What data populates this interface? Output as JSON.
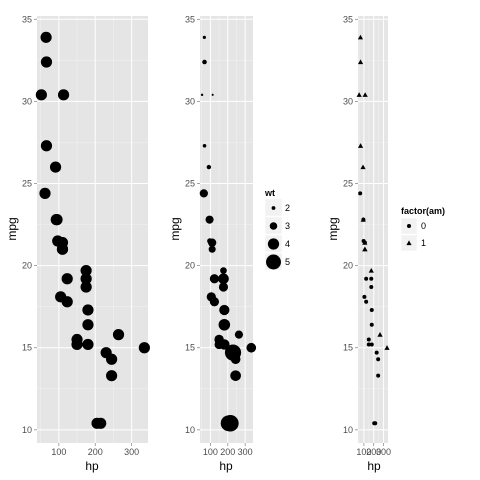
{
  "chart_data": [
    {
      "type": "scatter",
      "xlabel": "hp",
      "ylabel": "mpg",
      "xticks": [
        "100",
        "200",
        "300"
      ],
      "yticks": [
        "10",
        "15",
        "20",
        "25",
        "30",
        "35"
      ],
      "xlim": [
        40,
        345
      ],
      "ylim": [
        9.2,
        35.2
      ],
      "size_by": "constant",
      "shape_by": "none",
      "grid": true,
      "background": "#e5e5e5",
      "points": [
        {
          "hp": 110,
          "mpg": 21.0
        },
        {
          "hp": 110,
          "mpg": 21.0
        },
        {
          "hp": 93,
          "mpg": 22.8
        },
        {
          "hp": 110,
          "mpg": 21.4
        },
        {
          "hp": 175,
          "mpg": 18.7
        },
        {
          "hp": 105,
          "mpg": 18.1
        },
        {
          "hp": 245,
          "mpg": 14.3
        },
        {
          "hp": 62,
          "mpg": 24.4
        },
        {
          "hp": 95,
          "mpg": 22.8
        },
        {
          "hp": 123,
          "mpg": 19.2
        },
        {
          "hp": 123,
          "mpg": 17.8
        },
        {
          "hp": 180,
          "mpg": 16.4
        },
        {
          "hp": 180,
          "mpg": 17.3
        },
        {
          "hp": 180,
          "mpg": 15.2
        },
        {
          "hp": 205,
          "mpg": 10.4
        },
        {
          "hp": 215,
          "mpg": 10.4
        },
        {
          "hp": 230,
          "mpg": 14.7
        },
        {
          "hp": 66,
          "mpg": 32.4
        },
        {
          "hp": 52,
          "mpg": 30.4
        },
        {
          "hp": 65,
          "mpg": 33.9
        },
        {
          "hp": 97,
          "mpg": 21.5
        },
        {
          "hp": 150,
          "mpg": 15.5
        },
        {
          "hp": 150,
          "mpg": 15.2
        },
        {
          "hp": 245,
          "mpg": 13.3
        },
        {
          "hp": 175,
          "mpg": 19.2
        },
        {
          "hp": 66,
          "mpg": 27.3
        },
        {
          "hp": 91,
          "mpg": 26.0
        },
        {
          "hp": 113,
          "mpg": 30.4
        },
        {
          "hp": 264,
          "mpg": 15.8
        },
        {
          "hp": 175,
          "mpg": 19.7
        },
        {
          "hp": 335,
          "mpg": 15.0
        },
        {
          "hp": 109,
          "mpg": 21.4
        }
      ]
    },
    {
      "type": "scatter",
      "xlabel": "hp",
      "ylabel": "mpg",
      "xticks": [
        "100",
        "200",
        "300"
      ],
      "yticks": [
        "10",
        "15",
        "20",
        "25",
        "30",
        "35"
      ],
      "xlim": [
        40,
        345
      ],
      "ylim": [
        9.2,
        35.2
      ],
      "size_by": "wt",
      "shape_by": "none",
      "grid": true,
      "background": "#e5e5e5",
      "legend": {
        "title": "wt",
        "placement": "right",
        "labels": [
          "2",
          "3",
          "4",
          "5"
        ]
      },
      "points": [
        {
          "hp": 110,
          "mpg": 21.0,
          "wt": 2.62
        },
        {
          "hp": 110,
          "mpg": 21.0,
          "wt": 2.875
        },
        {
          "hp": 93,
          "mpg": 22.8,
          "wt": 2.32
        },
        {
          "hp": 110,
          "mpg": 21.4,
          "wt": 3.215
        },
        {
          "hp": 175,
          "mpg": 18.7,
          "wt": 3.44
        },
        {
          "hp": 105,
          "mpg": 18.1,
          "wt": 3.46
        },
        {
          "hp": 245,
          "mpg": 14.3,
          "wt": 3.57
        },
        {
          "hp": 62,
          "mpg": 24.4,
          "wt": 3.19
        },
        {
          "hp": 95,
          "mpg": 22.8,
          "wt": 3.15
        },
        {
          "hp": 123,
          "mpg": 19.2,
          "wt": 3.44
        },
        {
          "hp": 123,
          "mpg": 17.8,
          "wt": 3.44
        },
        {
          "hp": 180,
          "mpg": 16.4,
          "wt": 4.07
        },
        {
          "hp": 180,
          "mpg": 17.3,
          "wt": 3.73
        },
        {
          "hp": 180,
          "mpg": 15.2,
          "wt": 3.78
        },
        {
          "hp": 205,
          "mpg": 10.4,
          "wt": 5.25
        },
        {
          "hp": 215,
          "mpg": 10.4,
          "wt": 5.424
        },
        {
          "hp": 230,
          "mpg": 14.7,
          "wt": 5.345
        },
        {
          "hp": 66,
          "mpg": 32.4,
          "wt": 2.2
        },
        {
          "hp": 52,
          "mpg": 30.4,
          "wt": 1.615
        },
        {
          "hp": 65,
          "mpg": 33.9,
          "wt": 1.835
        },
        {
          "hp": 97,
          "mpg": 21.5,
          "wt": 2.465
        },
        {
          "hp": 150,
          "mpg": 15.5,
          "wt": 3.52
        },
        {
          "hp": 150,
          "mpg": 15.2,
          "wt": 3.435
        },
        {
          "hp": 245,
          "mpg": 13.3,
          "wt": 3.84
        },
        {
          "hp": 175,
          "mpg": 19.2,
          "wt": 3.845
        },
        {
          "hp": 66,
          "mpg": 27.3,
          "wt": 1.935
        },
        {
          "hp": 91,
          "mpg": 26.0,
          "wt": 2.14
        },
        {
          "hp": 113,
          "mpg": 30.4,
          "wt": 1.513
        },
        {
          "hp": 264,
          "mpg": 15.8,
          "wt": 3.17
        },
        {
          "hp": 175,
          "mpg": 19.7,
          "wt": 2.77
        },
        {
          "hp": 335,
          "mpg": 15.0,
          "wt": 3.57
        },
        {
          "hp": 109,
          "mpg": 21.4,
          "wt": 2.78
        }
      ]
    },
    {
      "type": "scatter",
      "xlabel": "hp",
      "ylabel": "mpg",
      "xticks": [
        "100",
        "200",
        "300"
      ],
      "yticks": [
        "10",
        "15",
        "20",
        "25",
        "30",
        "35"
      ],
      "xlim": [
        40,
        345
      ],
      "ylim": [
        9.2,
        35.2
      ],
      "size_by": "constant",
      "shape_by": "am",
      "grid": true,
      "background": "#e5e5e5",
      "legend": {
        "title": "factor(am)",
        "placement": "right",
        "labels": [
          "0",
          "1"
        ],
        "shapes": [
          "circle",
          "triangle"
        ]
      },
      "points": [
        {
          "hp": 110,
          "mpg": 21.0,
          "am": 1
        },
        {
          "hp": 110,
          "mpg": 21.0,
          "am": 1
        },
        {
          "hp": 93,
          "mpg": 22.8,
          "am": 1
        },
        {
          "hp": 110,
          "mpg": 21.4,
          "am": 0
        },
        {
          "hp": 175,
          "mpg": 18.7,
          "am": 0
        },
        {
          "hp": 105,
          "mpg": 18.1,
          "am": 0
        },
        {
          "hp": 245,
          "mpg": 14.3,
          "am": 0
        },
        {
          "hp": 62,
          "mpg": 24.4,
          "am": 0
        },
        {
          "hp": 95,
          "mpg": 22.8,
          "am": 0
        },
        {
          "hp": 123,
          "mpg": 19.2,
          "am": 0
        },
        {
          "hp": 123,
          "mpg": 17.8,
          "am": 0
        },
        {
          "hp": 180,
          "mpg": 16.4,
          "am": 0
        },
        {
          "hp": 180,
          "mpg": 17.3,
          "am": 0
        },
        {
          "hp": 180,
          "mpg": 15.2,
          "am": 0
        },
        {
          "hp": 205,
          "mpg": 10.4,
          "am": 0
        },
        {
          "hp": 215,
          "mpg": 10.4,
          "am": 0
        },
        {
          "hp": 230,
          "mpg": 14.7,
          "am": 0
        },
        {
          "hp": 66,
          "mpg": 32.4,
          "am": 1
        },
        {
          "hp": 52,
          "mpg": 30.4,
          "am": 1
        },
        {
          "hp": 65,
          "mpg": 33.9,
          "am": 1
        },
        {
          "hp": 97,
          "mpg": 21.5,
          "am": 0
        },
        {
          "hp": 150,
          "mpg": 15.5,
          "am": 0
        },
        {
          "hp": 150,
          "mpg": 15.2,
          "am": 0
        },
        {
          "hp": 245,
          "mpg": 13.3,
          "am": 0
        },
        {
          "hp": 175,
          "mpg": 19.2,
          "am": 0
        },
        {
          "hp": 66,
          "mpg": 27.3,
          "am": 1
        },
        {
          "hp": 91,
          "mpg": 26.0,
          "am": 1
        },
        {
          "hp": 113,
          "mpg": 30.4,
          "am": 1
        },
        {
          "hp": 264,
          "mpg": 15.8,
          "am": 1
        },
        {
          "hp": 175,
          "mpg": 19.7,
          "am": 1
        },
        {
          "hp": 335,
          "mpg": 15.0,
          "am": 1
        },
        {
          "hp": 109,
          "mpg": 21.4,
          "am": 1
        }
      ]
    }
  ]
}
